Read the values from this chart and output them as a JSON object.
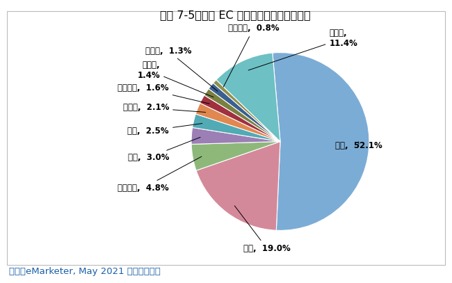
{
  "title": "図表 7-5：国別 EC 市場シェア（単位：％）",
  "source": "出所：eMarketer, May 2021 をもとに作成",
  "labels": [
    "中国",
    "米国",
    "イギリス",
    "日本",
    "韓国",
    "ドイツ",
    "フランス",
    "インド",
    "カナダ",
    "ブラジル",
    "その他"
  ],
  "values": [
    52.1,
    19.0,
    4.8,
    3.0,
    2.5,
    2.1,
    1.6,
    1.4,
    1.3,
    0.8,
    11.4
  ],
  "colors": [
    "#7bacd6",
    "#d4899a",
    "#8db87a",
    "#9b7fb5",
    "#52aab5",
    "#e08850",
    "#a03040",
    "#7a8040",
    "#3a6090",
    "#909050",
    "#6dc0c4"
  ],
  "background_color": "#ffffff",
  "title_fontsize": 11.5,
  "label_fontsize": 8.5,
  "source_fontsize": 9.5
}
